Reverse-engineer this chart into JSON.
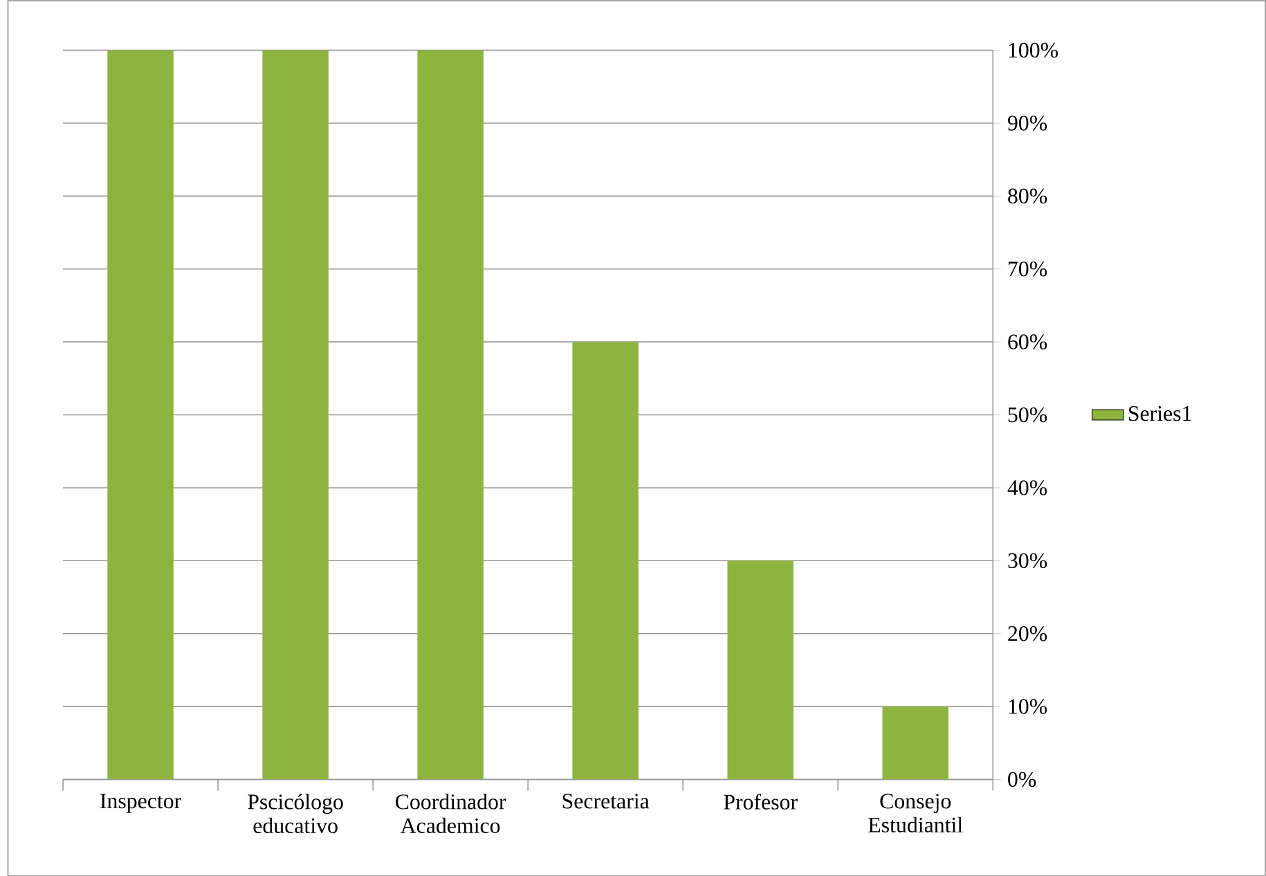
{
  "chart_data": {
    "type": "bar",
    "categories": [
      "Inspector",
      "Pscicólogo educativo",
      "Coordinador Academico",
      "Secretaria",
      "Profesor",
      "Consejo Estudiantil"
    ],
    "series": [
      {
        "name": "Series1",
        "color": "#8cb43e",
        "values": [
          100,
          100,
          100,
          60,
          30,
          10
        ]
      }
    ],
    "ylim": [
      0,
      100
    ],
    "yticks": [
      {
        "value": 0,
        "label": "0%"
      },
      {
        "value": 10,
        "label": "10%"
      },
      {
        "value": 20,
        "label": "20%"
      },
      {
        "value": 30,
        "label": "30%"
      },
      {
        "value": 40,
        "label": "40%"
      },
      {
        "value": 50,
        "label": "50%"
      },
      {
        "value": 60,
        "label": "60%"
      },
      {
        "value": 70,
        "label": "70%"
      },
      {
        "value": 80,
        "label": "80%"
      },
      {
        "value": 90,
        "label": "90%"
      },
      {
        "value": 100,
        "label": "100%"
      }
    ],
    "grid": "y",
    "legend": "right"
  }
}
